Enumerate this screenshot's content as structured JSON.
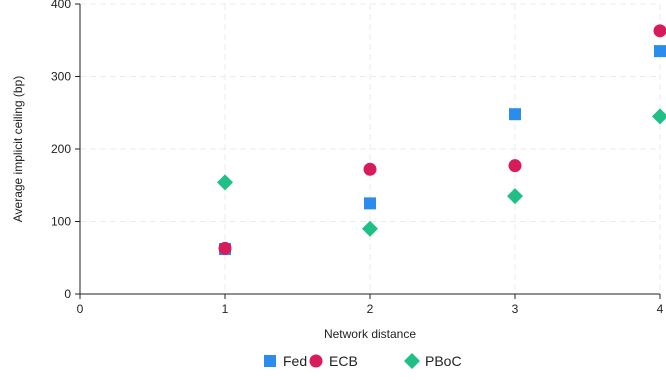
{
  "chart_data": {
    "type": "scatter",
    "xlabel": "Network distance",
    "ylabel": "Average implicit ceiling (bp)",
    "xlim": [
      0,
      4
    ],
    "ylim": [
      0,
      400
    ],
    "xticks": [
      0,
      1,
      2,
      3,
      4
    ],
    "yticks": [
      0,
      100,
      200,
      300,
      400
    ],
    "grid": true,
    "legend_position": "bottom",
    "series": [
      {
        "name": "Fed",
        "color": "#2b8cee",
        "marker": "square",
        "x": [
          1,
          2,
          3,
          4
        ],
        "y": [
          62,
          125,
          248,
          335
        ]
      },
      {
        "name": "ECB",
        "color": "#d81b5a",
        "marker": "circle",
        "x": [
          1,
          2,
          3,
          4
        ],
        "y": [
          63,
          172,
          177,
          363
        ]
      },
      {
        "name": "PBoC",
        "color": "#1fbf86",
        "marker": "diamond",
        "x": [
          1,
          2,
          3,
          4
        ],
        "y": [
          154,
          90,
          135,
          245
        ]
      }
    ]
  }
}
